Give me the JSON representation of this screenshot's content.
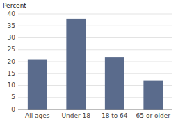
{
  "chart_data": {
    "type": "bar",
    "y_label": "Percent",
    "categories": [
      "All ages",
      "Under 18",
      "18 to 64",
      "65 or older"
    ],
    "values": [
      21,
      38,
      22,
      12
    ],
    "color": "#5a6b8c",
    "ylim": [
      0,
      40
    ],
    "yticks": [
      0,
      5,
      10,
      15,
      20,
      25,
      30,
      35,
      40
    ],
    "grid": true
  }
}
